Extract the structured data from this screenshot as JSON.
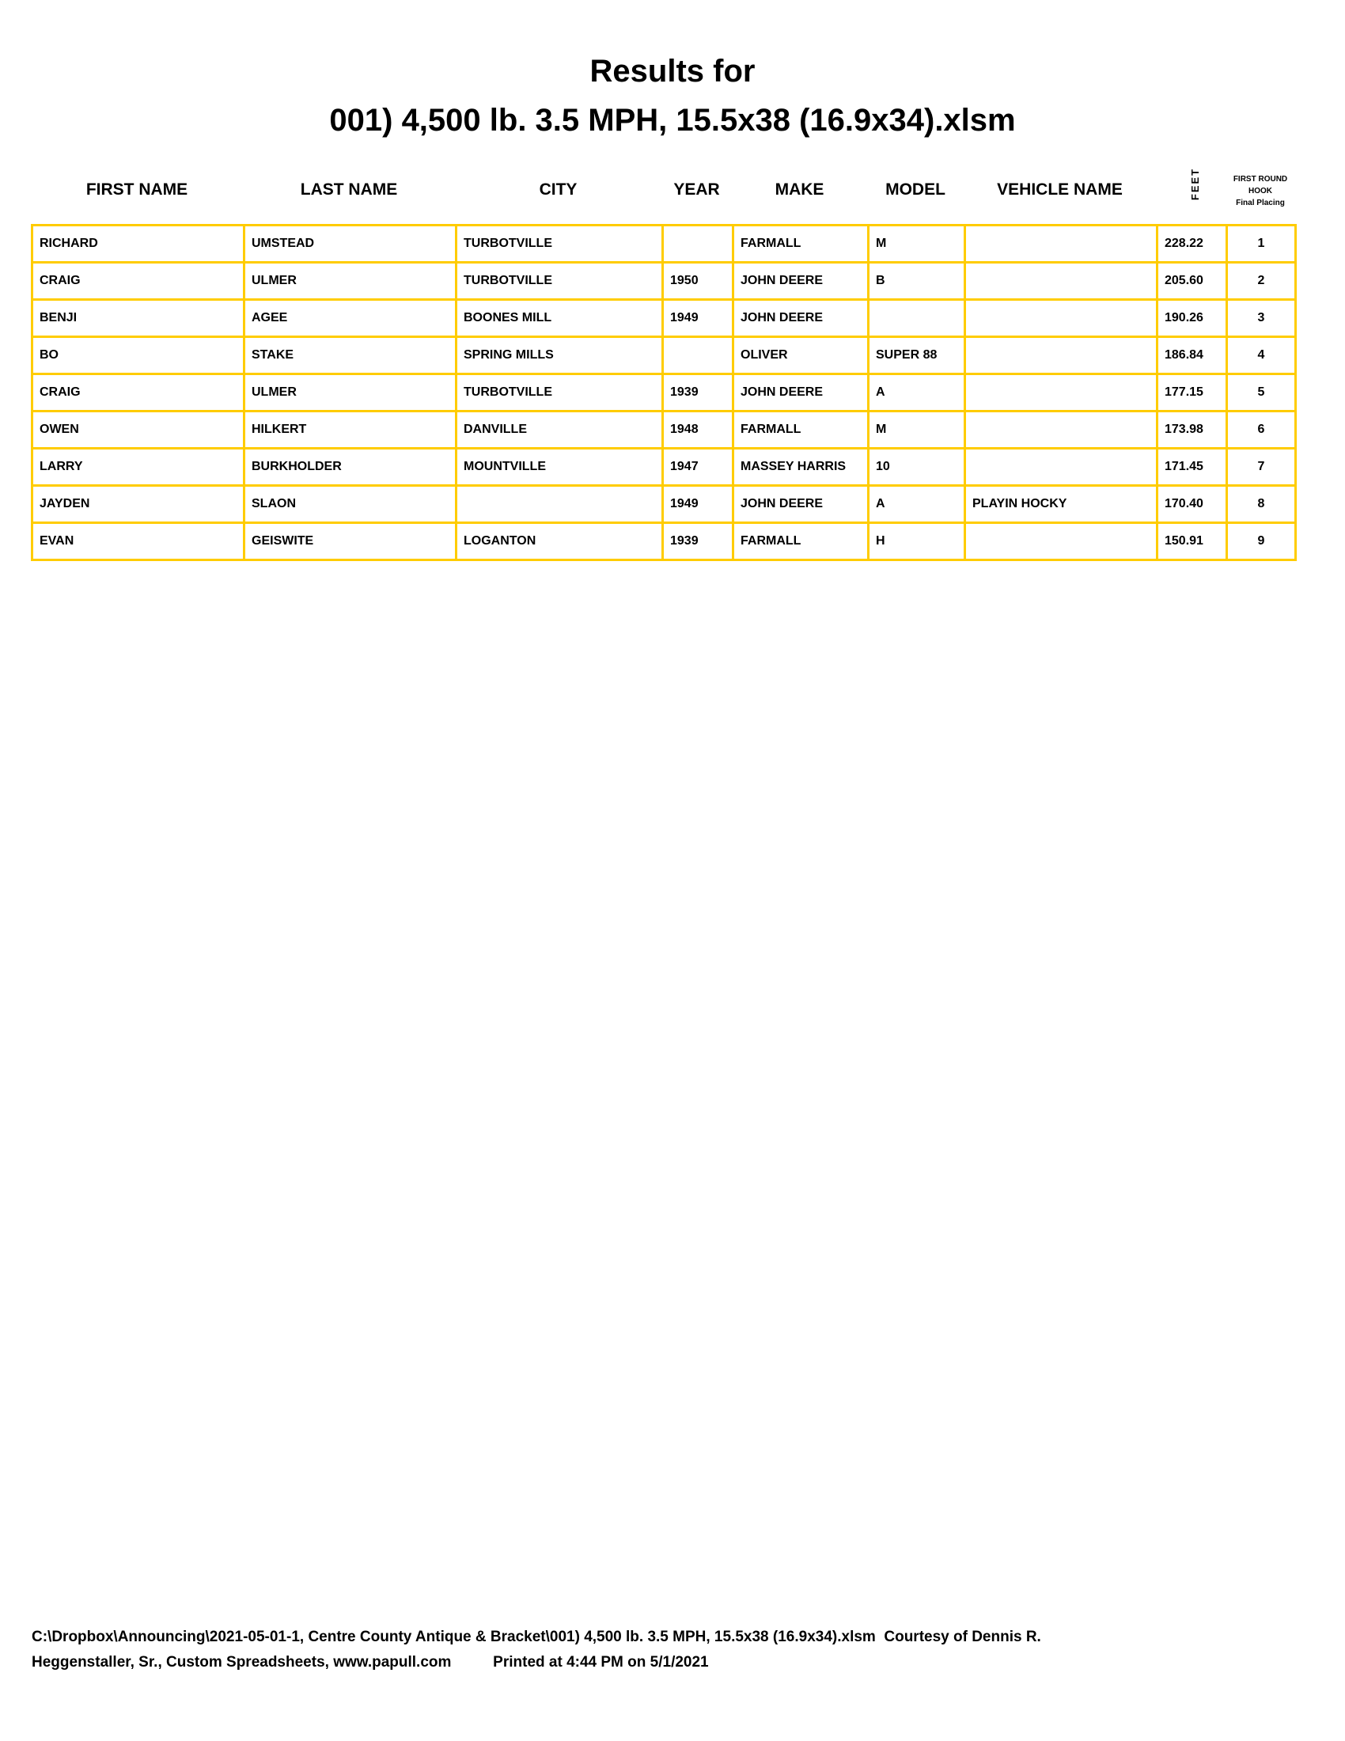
{
  "title": {
    "line1": "Results for",
    "line2": "001) 4,500 lb. 3.5 MPH, 15.5x38 (16.9x34).xlsm"
  },
  "headers": {
    "first": "FIRST NAME",
    "last": "LAST NAME",
    "city": "CITY",
    "year": "YEAR",
    "make": "MAKE",
    "model": "MODEL",
    "vehicle": "VEHICLE NAME",
    "feet": "FEET",
    "round1": "FIRST ROUND",
    "round2": "HOOK",
    "round3": "Final Placing"
  },
  "rows": [
    [
      "RICHARD",
      "UMSTEAD",
      "TURBOTVILLE",
      "",
      "FARMALL",
      "M",
      "",
      "228.22",
      "1"
    ],
    [
      "CRAIG",
      "ULMER",
      "TURBOTVILLE",
      "1950",
      "JOHN DEERE",
      "B",
      "",
      "205.60",
      "2"
    ],
    [
      "BENJI",
      "AGEE",
      "BOONES MILL",
      "1949",
      "JOHN DEERE",
      "",
      "",
      "190.26",
      "3"
    ],
    [
      "BO",
      "STAKE",
      "SPRING MILLS",
      "",
      "OLIVER",
      "SUPER 88",
      "",
      "186.84",
      "4"
    ],
    [
      "CRAIG",
      "ULMER",
      "TURBOTVILLE",
      "1939",
      "JOHN DEERE",
      "A",
      "",
      "177.15",
      "5"
    ],
    [
      "OWEN",
      "HILKERT",
      "DANVILLE",
      "1948",
      "FARMALL",
      "M",
      "",
      "173.98",
      "6"
    ],
    [
      "LARRY",
      "BURKHOLDER",
      "MOUNTVILLE",
      "1947",
      "MASSEY HARRIS",
      "10",
      "",
      "171.45",
      "7"
    ],
    [
      "JAYDEN",
      "SLAON",
      "",
      "1949",
      "JOHN DEERE",
      "A",
      "PLAYIN HOCKY",
      "170.40",
      "8"
    ],
    [
      "EVAN",
      "GEISWITE",
      "LOGANTON",
      "1939",
      "FARMALL",
      "H",
      "",
      "150.91",
      "9"
    ]
  ],
  "footer": {
    "line1": "C:\\Dropbox\\Announcing\\2021-05-01-1, Centre County Antique & Bracket\\001) 4,500 lb. 3.5 MPH, 15.5x38 (16.9x34).xlsm  Courtesy of Dennis R.",
    "line2": "Heggenstaller, Sr., Custom Spreadsheets, www.papull.com          Printed at 4:44 PM on 5/1/2021"
  },
  "colors": {
    "grid": "#FFCC00"
  }
}
